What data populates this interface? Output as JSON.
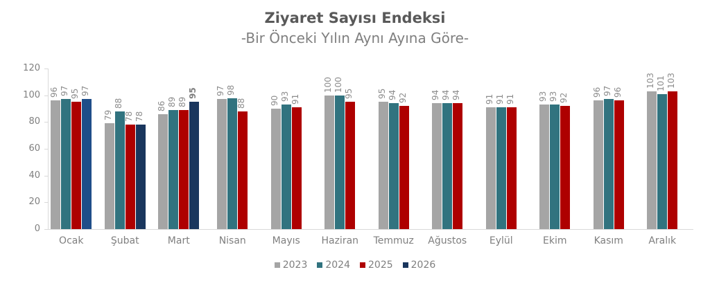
{
  "chart_data": {
    "type": "bar",
    "title": "Ziyaret Sayısı Endeksi",
    "subtitle": "-Bir Önceki Yılın Aynı Ayına Göre-",
    "xlabel": "",
    "ylabel": "",
    "ylim": [
      0,
      120
    ],
    "yticks": [
      0,
      20,
      40,
      60,
      80,
      100,
      120
    ],
    "grid": false,
    "legend_position": "bottom",
    "categories": [
      "Ocak",
      "Şubat",
      "Mart",
      "Nisan",
      "Mayıs",
      "Haziran",
      "Temmuz",
      "Ağustos",
      "Eylül",
      "Ekim",
      "Kasım",
      "Aralık"
    ],
    "series": [
      {
        "name": "2023",
        "color": "#A5A5A5",
        "values": [
          96,
          79,
          86,
          97,
          90,
          100,
          95,
          94,
          91,
          93,
          96,
          103
        ]
      },
      {
        "name": "2024",
        "color": "#31737F",
        "values": [
          97,
          88,
          89,
          98,
          93,
          100,
          94,
          94,
          91,
          93,
          97,
          101
        ]
      },
      {
        "name": "2025",
        "color": "#AE0000",
        "values": [
          95,
          78,
          89,
          88,
          91,
          95,
          92,
          94,
          91,
          92,
          96,
          103
        ]
      },
      {
        "name": "2026",
        "color": "#1A365D",
        "values": [
          97,
          78,
          95,
          null,
          null,
          null,
          null,
          null,
          null,
          null,
          null,
          null
        ]
      }
    ],
    "annotations": [
      {
        "note": "Ocak 2026 bar shown in lighter navy",
        "color": "#1F4E89"
      },
      {
        "note": "Mart 2026 label '95' shown in bold"
      }
    ]
  },
  "legend": [
    {
      "label": "2023",
      "color": "#A5A5A5"
    },
    {
      "label": "2024",
      "color": "#31737F"
    },
    {
      "label": "2025",
      "color": "#AE0000"
    },
    {
      "label": "2026",
      "color": "#1A365D"
    }
  ]
}
